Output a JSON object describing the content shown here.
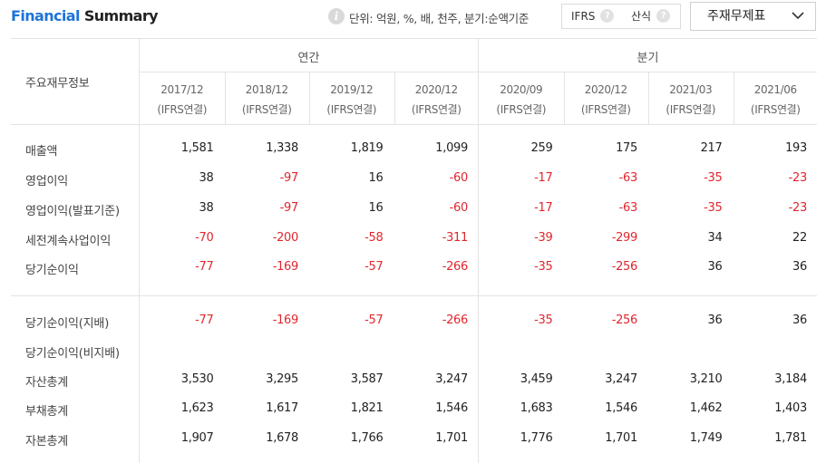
{
  "header": {
    "title_part1": "Financial",
    "title_part2": "Summary",
    "info_icon": "info-icon",
    "unit_text": "단위: 억원, %, 배, 천주, 분기:순액기준",
    "toggle_ifrs": "IFRS",
    "toggle_calc": "산식",
    "help_glyph": "?",
    "dropdown_label": "주재무제표"
  },
  "table": {
    "corner_label": "주요재무정보",
    "group_annual": "연간",
    "group_quarter": "분기",
    "columns": [
      {
        "period": "2017/12",
        "basis": "(IFRS연결)"
      },
      {
        "period": "2018/12",
        "basis": "(IFRS연결)"
      },
      {
        "period": "2019/12",
        "basis": "(IFRS연결)"
      },
      {
        "period": "2020/12",
        "basis": "(IFRS연결)"
      },
      {
        "period": "2020/09",
        "basis": "(IFRS연결)"
      },
      {
        "period": "2020/12",
        "basis": "(IFRS연결)"
      },
      {
        "period": "2021/03",
        "basis": "(IFRS연결)"
      },
      {
        "period": "2021/06",
        "basis": "(IFRS연결)"
      }
    ],
    "rows": [
      {
        "label": "매출액",
        "values": [
          "1,581",
          "1,338",
          "1,819",
          "1,099",
          "259",
          "175",
          "217",
          "193"
        ]
      },
      {
        "label": "영업이익",
        "values": [
          "38",
          "-97",
          "16",
          "-60",
          "-17",
          "-63",
          "-35",
          "-23"
        ]
      },
      {
        "label": "영업이익(발표기준)",
        "values": [
          "38",
          "-97",
          "16",
          "-60",
          "-17",
          "-63",
          "-35",
          "-23"
        ]
      },
      {
        "label": "세전계속사업이익",
        "values": [
          "-70",
          "-200",
          "-58",
          "-311",
          "-39",
          "-299",
          "34",
          "22"
        ]
      },
      {
        "label": "당기순이익",
        "values": [
          "-77",
          "-169",
          "-57",
          "-266",
          "-35",
          "-256",
          "36",
          "36"
        ]
      },
      {
        "label": "당기순이익(지배)",
        "values": [
          "-77",
          "-169",
          "-57",
          "-266",
          "-35",
          "-256",
          "36",
          "36"
        ]
      },
      {
        "label": "당기순이익(비지배)",
        "values": [
          "",
          "",
          "",
          "",
          "",
          "",
          "",
          ""
        ]
      },
      {
        "label": "자산총계",
        "values": [
          "3,530",
          "3,295",
          "3,587",
          "3,247",
          "3,459",
          "3,247",
          "3,210",
          "3,184"
        ]
      },
      {
        "label": "부채총계",
        "values": [
          "1,623",
          "1,617",
          "1,821",
          "1,546",
          "1,683",
          "1,546",
          "1,462",
          "1,403"
        ]
      },
      {
        "label": "자본총계",
        "values": [
          "1,907",
          "1,678",
          "1,766",
          "1,701",
          "1,776",
          "1,701",
          "1,749",
          "1,781"
        ]
      }
    ]
  }
}
